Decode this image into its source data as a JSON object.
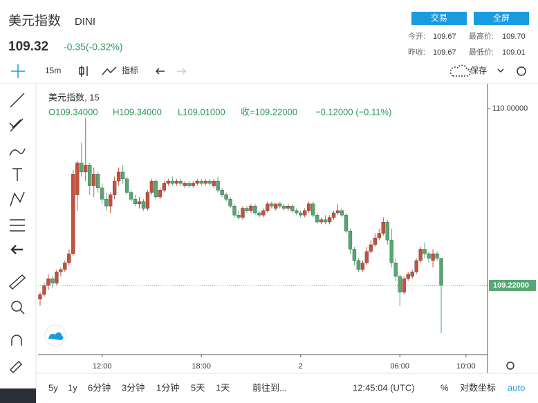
{
  "header": {
    "name": "美元指数",
    "symbol": "DINI",
    "price": "109.32",
    "change": "-0.35(-0.32%)",
    "buttons": [
      "交易",
      "全屏"
    ],
    "stats": [
      [
        "今开:",
        "109.67",
        "最高价:",
        "109.70"
      ],
      [
        "昨收:",
        "109.67",
        "最低价:",
        "109.01"
      ]
    ]
  },
  "toolbar": {
    "interval": "15m",
    "indicators": "指标",
    "save": "保存"
  },
  "bottom": {
    "ranges": [
      "5y",
      "1y",
      "6分钟",
      "3分钟",
      "1分钟",
      "5天",
      "1天"
    ],
    "goto": "前往到...",
    "clock": "12:45:04 (UTC)",
    "percent": "%",
    "log": "对数坐标",
    "auto": "auto"
  },
  "chart_data": {
    "type": "candlestick",
    "legend": {
      "title": "美元指数, 15",
      "items": [
        "O109.34000",
        "H109.34000",
        "L109.01000",
        "收=109.22000",
        "−0.12000 (−0.11%)"
      ]
    },
    "up_color": "#c4513e",
    "down_color": "#57a773",
    "xlim": [
      -0.5,
      108.2
    ],
    "ylim": [
      108.915,
      110.107
    ],
    "xticks": [
      {
        "value": 15,
        "label": "12:00"
      },
      {
        "value": 39,
        "label": "18:00"
      },
      {
        "value": 63,
        "label": "2"
      },
      {
        "value": 87,
        "label": "06:00"
      },
      {
        "value": 103,
        "label": "10:00"
      }
    ],
    "yticks": [
      {
        "value": 110,
        "label": "110.00000"
      }
    ],
    "last_price": {
      "value": 109.22,
      "label": "109.22000"
    },
    "ohlc": [
      [
        109.16,
        109.19,
        109.13,
        109.18
      ],
      [
        109.18,
        109.23,
        109.17,
        109.22
      ],
      [
        109.22,
        109.27,
        109.2,
        109.25
      ],
      [
        109.25,
        109.26,
        109.21,
        109.23
      ],
      [
        109.23,
        109.29,
        109.22,
        109.28
      ],
      [
        109.28,
        109.3,
        109.26,
        109.29
      ],
      [
        109.29,
        109.33,
        109.28,
        109.32
      ],
      [
        109.32,
        109.38,
        109.31,
        109.36
      ],
      [
        109.36,
        109.73,
        109.35,
        109.71
      ],
      [
        109.62,
        109.77,
        109.55,
        109.76
      ],
      [
        109.76,
        109.85,
        109.7,
        109.72
      ],
      [
        109.72,
        109.96,
        109.68,
        109.75
      ],
      [
        109.75,
        109.76,
        109.62,
        109.66
      ],
      [
        109.66,
        109.74,
        109.61,
        109.71
      ],
      [
        109.71,
        109.72,
        109.63,
        109.65
      ],
      [
        109.65,
        109.67,
        109.58,
        109.6
      ],
      [
        109.6,
        109.63,
        109.55,
        109.57
      ],
      [
        109.57,
        109.63,
        109.54,
        109.62
      ],
      [
        109.62,
        109.7,
        109.6,
        109.68
      ],
      [
        109.68,
        109.74,
        109.66,
        109.72
      ],
      [
        109.72,
        109.75,
        109.67,
        109.69
      ],
      [
        109.69,
        109.7,
        109.62,
        109.63
      ],
      [
        109.63,
        109.64,
        109.59,
        109.6
      ],
      [
        109.6,
        109.62,
        109.57,
        109.58
      ],
      [
        109.58,
        109.61,
        109.56,
        109.59
      ],
      [
        109.59,
        109.6,
        109.55,
        109.56
      ],
      [
        109.56,
        109.64,
        109.55,
        109.63
      ],
      [
        109.63,
        109.69,
        109.62,
        109.68
      ],
      [
        109.68,
        109.69,
        109.6,
        109.61
      ],
      [
        109.61,
        109.65,
        109.6,
        109.64
      ],
      [
        109.64,
        109.68,
        109.63,
        109.67
      ],
      [
        109.67,
        109.69,
        109.66,
        109.68
      ],
      [
        109.68,
        109.7,
        109.66,
        109.67
      ],
      [
        109.67,
        109.69,
        109.66,
        109.68
      ],
      [
        109.68,
        109.69,
        109.66,
        109.67
      ],
      [
        109.66,
        109.68,
        109.65,
        109.67
      ],
      [
        109.67,
        109.68,
        109.65,
        109.66
      ],
      [
        109.66,
        109.68,
        109.65,
        109.67
      ],
      [
        109.67,
        109.69,
        109.66,
        109.68
      ],
      [
        109.68,
        109.69,
        109.66,
        109.67
      ],
      [
        109.67,
        109.69,
        109.66,
        109.68
      ],
      [
        109.68,
        109.69,
        109.66,
        109.67
      ],
      [
        109.66,
        109.69,
        109.65,
        109.68
      ],
      [
        109.68,
        109.7,
        109.63,
        109.64
      ],
      [
        109.64,
        109.65,
        109.61,
        109.62
      ],
      [
        109.62,
        109.63,
        109.59,
        109.6
      ],
      [
        109.6,
        109.61,
        109.56,
        109.57
      ],
      [
        109.57,
        109.58,
        109.52,
        109.53
      ],
      [
        109.53,
        109.55,
        109.51,
        109.52
      ],
      [
        109.52,
        109.57,
        109.51,
        109.56
      ],
      [
        109.56,
        109.57,
        109.54,
        109.55
      ],
      [
        109.55,
        109.58,
        109.54,
        109.57
      ],
      [
        109.57,
        109.58,
        109.53,
        109.54
      ],
      [
        109.54,
        109.55,
        109.52,
        109.53
      ],
      [
        109.53,
        109.56,
        109.52,
        109.55
      ],
      [
        109.55,
        109.59,
        109.54,
        109.58
      ],
      [
        109.58,
        109.59,
        109.56,
        109.57
      ],
      [
        109.56,
        109.58,
        109.55,
        109.58
      ],
      [
        109.58,
        109.59,
        109.56,
        109.57
      ],
      [
        109.57,
        109.58,
        109.55,
        109.56
      ],
      [
        109.56,
        109.58,
        109.55,
        109.57
      ],
      [
        109.57,
        109.58,
        109.54,
        109.55
      ],
      [
        109.55,
        109.56,
        109.53,
        109.54
      ],
      [
        109.54,
        109.55,
        109.52,
        109.53
      ],
      [
        109.53,
        109.56,
        109.52,
        109.55
      ],
      [
        109.55,
        109.59,
        109.54,
        109.58
      ],
      [
        109.58,
        109.59,
        109.52,
        109.53
      ],
      [
        109.53,
        109.54,
        109.49,
        109.5
      ],
      [
        109.5,
        109.52,
        109.49,
        109.51
      ],
      [
        109.51,
        109.53,
        109.49,
        109.5
      ],
      [
        109.5,
        109.53,
        109.49,
        109.52
      ],
      [
        109.52,
        109.55,
        109.51,
        109.54
      ],
      [
        109.54,
        109.58,
        109.53,
        109.55
      ],
      [
        109.55,
        109.56,
        109.52,
        109.53
      ],
      [
        109.53,
        109.54,
        109.45,
        109.46
      ],
      [
        109.46,
        109.47,
        109.36,
        109.38
      ],
      [
        109.38,
        109.39,
        109.31,
        109.33
      ],
      [
        109.33,
        109.34,
        109.28,
        109.29
      ],
      [
        109.29,
        109.33,
        109.28,
        109.32
      ],
      [
        109.32,
        109.39,
        109.31,
        109.37
      ],
      [
        109.37,
        109.42,
        109.36,
        109.4
      ],
      [
        109.4,
        109.45,
        109.39,
        109.43
      ],
      [
        109.43,
        109.47,
        109.42,
        109.45
      ],
      [
        109.45,
        109.52,
        109.44,
        109.5
      ],
      [
        109.5,
        109.51,
        109.4,
        109.42
      ],
      [
        109.42,
        109.47,
        109.3,
        109.32
      ],
      [
        109.32,
        109.34,
        109.24,
        109.26
      ],
      [
        109.26,
        109.27,
        109.13,
        109.19
      ],
      [
        109.19,
        109.26,
        109.18,
        109.25
      ],
      [
        109.25,
        109.28,
        109.24,
        109.27
      ],
      [
        109.26,
        109.29,
        109.25,
        109.28
      ],
      [
        109.28,
        109.34,
        109.27,
        109.33
      ],
      [
        109.33,
        109.39,
        109.32,
        109.38
      ],
      [
        109.38,
        109.41,
        109.34,
        109.36
      ],
      [
        109.36,
        109.37,
        109.32,
        109.34
      ],
      [
        109.33,
        109.38,
        109.3,
        109.36
      ],
      [
        109.36,
        109.37,
        109.33,
        109.34
      ],
      [
        109.34,
        109.34,
        109.01,
        109.22
      ]
    ]
  }
}
